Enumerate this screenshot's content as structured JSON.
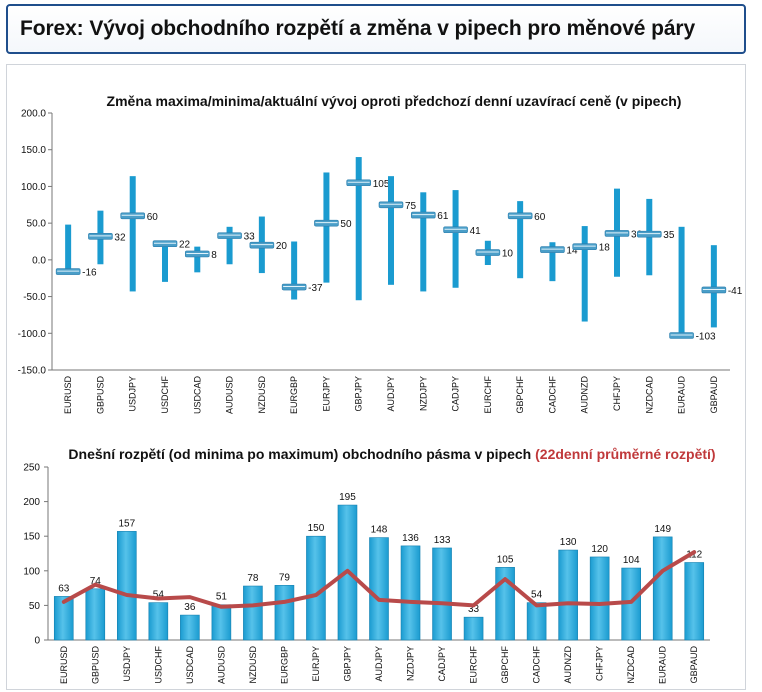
{
  "page": {
    "title": "Forex: Vývoj obchodního rozpětí a změna v pipech pro měnové páry"
  },
  "colors": {
    "bar": "#1a9bd0",
    "bar_light": "#56c2ea",
    "average_line": "#b84a4a",
    "marker": "#4a9ec8"
  },
  "chart_data": [
    {
      "type": "bar",
      "title": "Změna maxima/minima/aktuální vývoj oproti předchozí denní uzavírací ceně (v pipech)",
      "categories": [
        "EURUSD",
        "GBPUSD",
        "USDJPY",
        "USDCHF",
        "USDCAD",
        "AUDUSD",
        "NZDUSD",
        "EURGBP",
        "EURJPY",
        "GBPJPY",
        "AUDJPY",
        "NZDJPY",
        "CADJPY",
        "EURCHF",
        "GBPCHF",
        "CADCHF",
        "AUDNZD",
        "CHFJPY",
        "NZDCAD",
        "EURAUD",
        "GBPAUD"
      ],
      "high": [
        48,
        67,
        114,
        25,
        18,
        45,
        59,
        25,
        119,
        140,
        114,
        92,
        95,
        26,
        80,
        24,
        46,
        97,
        83,
        45,
        20
      ],
      "low": [
        -14,
        -6,
        -43,
        -30,
        -17,
        -6,
        -18,
        -54,
        -31,
        -55,
        -34,
        -43,
        -38,
        -7,
        -25,
        -29,
        -84,
        -23,
        -21,
        -104,
        -92
      ],
      "current": [
        -16,
        32,
        60,
        22,
        8,
        33,
        20,
        -37,
        50,
        105,
        75,
        61,
        41,
        10,
        60,
        14,
        18,
        36,
        35,
        -103,
        -41
      ],
      "current_labels": [
        "-16",
        "32",
        "60",
        "22",
        "8",
        "33",
        "20",
        "-37",
        "50",
        "105",
        "75",
        "61",
        "41",
        "10",
        "60",
        "14",
        "18",
        "36",
        "35",
        "-103",
        "-41"
      ],
      "ylim": [
        -150,
        200
      ],
      "yticks": [
        "-150.0",
        "-100.0",
        "-50.0",
        "0.0",
        "50.0",
        "100.0",
        "150.0",
        "200.0"
      ],
      "ytick_values": [
        -150,
        -100,
        -50,
        0,
        50,
        100,
        150,
        200
      ]
    },
    {
      "type": "bar",
      "title": "Dnešní rozpětí (od minima po maximum) obchodního pásma v pipech",
      "title_highlight": "(22denní průměrné rozpětí)",
      "categories": [
        "EURUSD",
        "GBPUSD",
        "USDJPY",
        "USDCHF",
        "USDCAD",
        "AUDUSD",
        "NZDUSD",
        "EURGBP",
        "EURJPY",
        "GBPJPY",
        "AUDJPY",
        "NZDJPY",
        "CADJPY",
        "EURCHF",
        "GBPCHF",
        "CADCHF",
        "AUDNZD",
        "CHFJPY",
        "NZDCAD",
        "EURAUD",
        "GBPAUD"
      ],
      "series": [
        {
          "type": "bar",
          "values": [
            63,
            74,
            157,
            54,
            36,
            51,
            78,
            79,
            150,
            195,
            148,
            136,
            133,
            33,
            105,
            54,
            130,
            120,
            104,
            149,
            112
          ]
        },
        {
          "type": "line",
          "values": [
            55,
            80,
            65,
            60,
            62,
            48,
            50,
            55,
            65,
            100,
            58,
            55,
            53,
            50,
            88,
            50,
            53,
            52,
            55,
            100,
            127
          ]
        }
      ],
      "value_labels": [
        "63",
        "74",
        "157",
        "54",
        "36",
        "51",
        "78",
        "79",
        "150",
        "195",
        "148",
        "136",
        "133",
        "33",
        "105",
        "54",
        "130",
        "120",
        "104",
        "149",
        "112"
      ],
      "ylim": [
        0,
        250
      ],
      "yticks": [
        "0",
        "50",
        "100",
        "150",
        "200",
        "250"
      ],
      "ytick_values": [
        0,
        50,
        100,
        150,
        200,
        250
      ]
    }
  ]
}
